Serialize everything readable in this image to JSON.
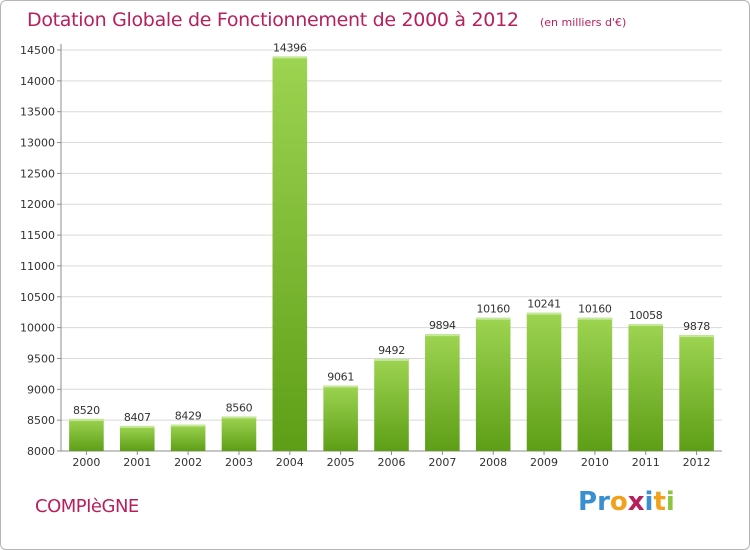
{
  "header": {
    "title": "Dotation Globale de Fonctionnement de 2000 à 2012",
    "subtitle": "(en milliers d'€)"
  },
  "footer": {
    "town": "COMPIèGNE",
    "logo": "Proxiti"
  },
  "colors": {
    "accent": "#b8205d",
    "bar_light": "#9dd451",
    "bar_dark": "#5e9e17",
    "logo_letters": [
      "#3a8fd0",
      "#3a8fd0",
      "#f2a11c",
      "#b8205d",
      "#3a8fd0",
      "#f2a11c",
      "#8cc63f"
    ]
  },
  "chart_data": {
    "type": "bar",
    "categories": [
      "2000",
      "2001",
      "2002",
      "2003",
      "2004",
      "2005",
      "2006",
      "2007",
      "2008",
      "2009",
      "2010",
      "2011",
      "2012"
    ],
    "values": [
      8520,
      8407,
      8429,
      8560,
      14396,
      9061,
      9492,
      9894,
      10160,
      10241,
      10160,
      10058,
      9878
    ],
    "title": "Dotation Globale de Fonctionnement de 2000 à 2012",
    "subtitle": "(en milliers d'€)",
    "xlabel": "",
    "ylabel": "",
    "ylim": [
      8000,
      14500
    ],
    "yticks": [
      8000,
      8500,
      9000,
      9500,
      10000,
      10500,
      11000,
      11500,
      12000,
      12500,
      13000,
      13500,
      14000,
      14500
    ],
    "grid": true,
    "legend": "none"
  }
}
